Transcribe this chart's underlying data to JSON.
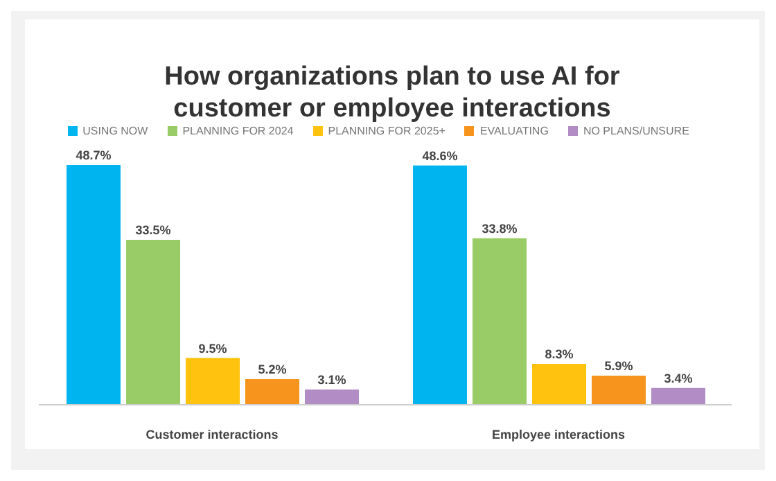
{
  "chart_data": {
    "type": "bar",
    "title": "How organizations plan to use AI for customer or employee interactions",
    "categories": [
      "Customer interactions",
      "Employee interactions"
    ],
    "series": [
      {
        "name": "USING NOW",
        "color": "#00b5ef",
        "values": [
          48.7,
          48.6
        ],
        "value_labels": [
          "48.7%",
          "48.6%"
        ]
      },
      {
        "name": "PLANNING FOR 2024",
        "color": "#99cc66",
        "values": [
          33.5,
          33.8
        ],
        "value_labels": [
          "33.5%",
          "33.8%"
        ]
      },
      {
        "name": "PLANNING FOR 2025+",
        "color": "#ffc20e",
        "values": [
          9.5,
          8.3
        ],
        "value_labels": [
          "9.5%",
          "8.3%"
        ]
      },
      {
        "name": "EVALUATING",
        "color": "#f7941d",
        "values": [
          5.2,
          5.9
        ],
        "value_labels": [
          "5.2%",
          "5.9%"
        ]
      },
      {
        "name": "NO PLANS/UNSURE",
        "color": "#b28dc5",
        "values": [
          3.1,
          3.4
        ],
        "value_labels": [
          "3.1%",
          "3.4%"
        ]
      }
    ],
    "tick_labels": "x",
    "legend": "top"
  }
}
